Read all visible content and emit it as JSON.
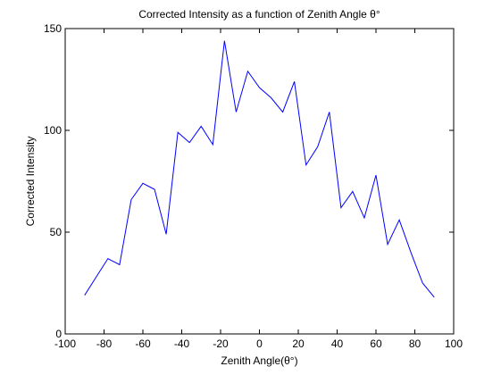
{
  "chart_data": {
    "type": "line",
    "title": "Corrected Intensity as a function of Zenith Angle θ°",
    "xlabel": "Zenith Angle(θ°)",
    "ylabel": "Corrected Intensity",
    "xlim": [
      -100,
      100
    ],
    "ylim": [
      0,
      150
    ],
    "xticks": [
      -100,
      -80,
      -60,
      -40,
      -20,
      0,
      20,
      40,
      60,
      80,
      100
    ],
    "yticks": [
      0,
      50,
      100,
      150
    ],
    "grid": false,
    "series": [
      {
        "color": "#0000ff",
        "x": [
          -90,
          -84,
          -78,
          -72,
          -66,
          -60,
          -54,
          -48,
          -42,
          -36,
          -30,
          -24,
          -18,
          -12,
          -6,
          0,
          6,
          12,
          18,
          24,
          30,
          36,
          42,
          48,
          54,
          60,
          66,
          72,
          78,
          84,
          90
        ],
        "y": [
          19,
          28,
          37,
          34,
          66,
          74,
          71,
          49,
          99,
          94,
          102,
          93,
          144,
          109,
          129,
          121,
          116,
          109,
          124,
          83,
          92,
          109,
          62,
          70,
          57,
          78,
          44,
          56,
          40,
          25,
          18
        ]
      }
    ]
  }
}
